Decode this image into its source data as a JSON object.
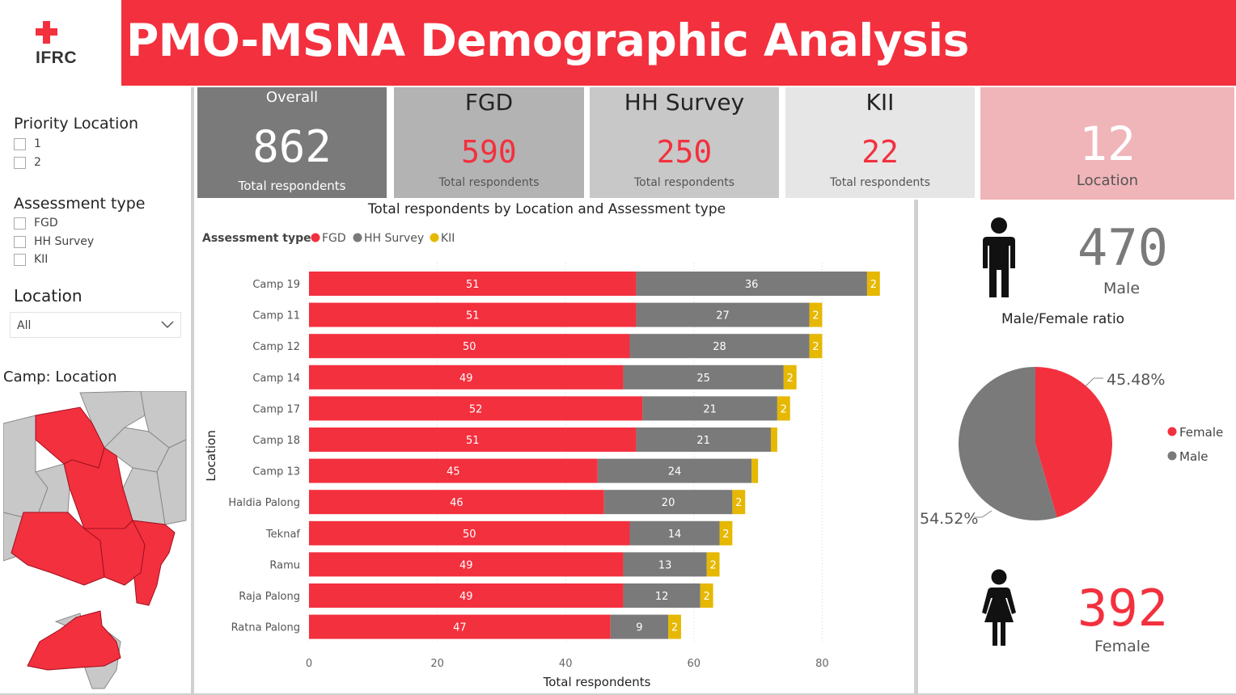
{
  "header": {
    "title": "PMO-MSNA Demographic Analysis",
    "logo_text": "IFRC"
  },
  "colors": {
    "accent": "#f3303e",
    "fgd": "#f3303e",
    "hh_survey": "#7a7a7a",
    "kii": "#e6b800"
  },
  "slicers": {
    "priority": {
      "title": "Priority Location",
      "items": [
        "1",
        "2"
      ]
    },
    "assessment": {
      "title": "Assessment type",
      "items": [
        "FGD",
        "HH Survey",
        "KII"
      ]
    },
    "location": {
      "title": "Location",
      "selected": "All"
    }
  },
  "map": {
    "title": "Camp: Location"
  },
  "kpis": {
    "overall": {
      "title": "Overall",
      "value": "862",
      "sub": "Total respondents"
    },
    "fgd": {
      "title": "FGD",
      "value": "590",
      "sub": "Total respondents"
    },
    "hh": {
      "title": "HH Survey",
      "value": "250",
      "sub": "Total respondents"
    },
    "kii": {
      "title": "KII",
      "value": "22",
      "sub": "Total respondents"
    },
    "location": {
      "value": "12",
      "sub": "Location"
    }
  },
  "chart_data": {
    "type": "bar",
    "orientation": "horizontal",
    "stacked": true,
    "title": "Total respondents by Location and Assessment type",
    "legend_title": "Assessment type",
    "xlabel": "Total respondents",
    "ylabel": "Location",
    "xlim": [
      0,
      90
    ],
    "xticks": [
      0,
      20,
      40,
      60,
      80
    ],
    "grid": true,
    "legend_position": "top-left",
    "categories": [
      "Camp 19",
      "Camp 11",
      "Camp 12",
      "Camp 14",
      "Camp 17",
      "Camp 18",
      "Camp 13",
      "Haldia Palong",
      "Teknaf",
      "Ramu",
      "Raja Palong",
      "Ratna Palong"
    ],
    "series": [
      {
        "name": "FGD",
        "values": [
          51,
          51,
          50,
          49,
          52,
          51,
          45,
          46,
          50,
          49,
          49,
          47
        ]
      },
      {
        "name": "HH Survey",
        "values": [
          36,
          27,
          28,
          25,
          21,
          21,
          24,
          20,
          14,
          13,
          12,
          9
        ]
      },
      {
        "name": "KII",
        "values": [
          2,
          2,
          2,
          2,
          2,
          1,
          1,
          2,
          2,
          2,
          2,
          2
        ]
      }
    ],
    "kii_labels": [
      "2",
      "2",
      "2",
      "2",
      "2",
      "",
      "",
      "2",
      "2",
      "2",
      "2",
      "2"
    ]
  },
  "gender": {
    "male_value": "470",
    "male_label": "Male",
    "female_value": "392",
    "female_label": "Female",
    "pie_title": "Male/Female ratio",
    "female_pct": 45.48,
    "male_pct": 54.52,
    "female_pct_label": "45.48%",
    "male_pct_label": "54.52%",
    "legend": [
      "Female",
      "Male"
    ]
  }
}
